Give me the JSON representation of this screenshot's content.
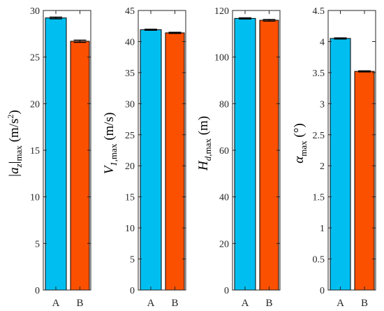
{
  "chart_data": [
    {
      "type": "bar",
      "categories": [
        "A",
        "B"
      ],
      "values": [
        29.2,
        26.7
      ],
      "errors": [
        0.1,
        0.12
      ],
      "ylim": [
        0,
        30
      ],
      "yticks": [
        "0",
        "5",
        "10",
        "15",
        "20",
        "25",
        "30"
      ],
      "ylabel_parts": [
        [
          "|",
          ""
        ],
        [
          "a",
          "it"
        ],
        [
          "z",
          "sub-it"
        ],
        [
          "|",
          ""
        ],
        [
          "max",
          "sub"
        ],
        [
          " (m/s",
          ""
        ],
        [
          "2",
          "sup"
        ],
        [
          ")",
          ""
        ]
      ],
      "colors": [
        "#00bff0",
        "#fb5000"
      ]
    },
    {
      "type": "bar",
      "categories": [
        "A",
        "B"
      ],
      "values": [
        41.9,
        41.4
      ],
      "errors": [
        0.1,
        0.1
      ],
      "ylim": [
        0,
        45
      ],
      "yticks": [
        "0",
        "5",
        "10",
        "15",
        "20",
        "25",
        "30",
        "35",
        "40",
        "45"
      ],
      "ylabel_parts": [
        [
          "V",
          "it"
        ],
        [
          "1,",
          "sub-it"
        ],
        [
          "max",
          "sub"
        ],
        [
          " (m/s)",
          ""
        ]
      ],
      "colors": [
        "#00bff0",
        "#fb5000"
      ]
    },
    {
      "type": "bar",
      "categories": [
        "A",
        "B"
      ],
      "values": [
        116.6,
        115.8
      ],
      "errors": [
        0.3,
        0.4
      ],
      "ylim": [
        0,
        120
      ],
      "yticks": [
        "0",
        "20",
        "40",
        "60",
        "80",
        "100",
        "120"
      ],
      "ylabel_parts": [
        [
          "H",
          "it"
        ],
        [
          "d",
          "sub-it"
        ],
        [
          ",max",
          "sub"
        ],
        [
          " (m)",
          ""
        ]
      ],
      "colors": [
        "#00bff0",
        "#fb5000"
      ]
    },
    {
      "type": "bar",
      "categories": [
        "A",
        "B"
      ],
      "values": [
        4.05,
        3.52
      ],
      "errors": [
        0.01,
        0.01
      ],
      "ylim": [
        0,
        4.5
      ],
      "yticks": [
        "0",
        "0.5",
        "1",
        "1.5",
        "2",
        "2.5",
        "3",
        "3.5",
        "4",
        "4.5"
      ],
      "ylabel_parts": [
        [
          "α",
          "it"
        ],
        [
          "max",
          "sub"
        ],
        [
          " (°)",
          ""
        ]
      ],
      "colors": [
        "#00bff0",
        "#fb5000"
      ]
    }
  ]
}
